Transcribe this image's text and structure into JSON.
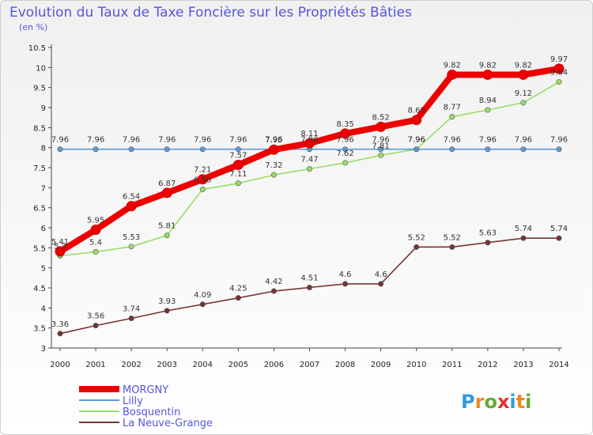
{
  "chart_data": {
    "type": "line",
    "title": "Evolution du Taux de Taxe Foncière sur les Propriétés Bâties",
    "subtitle": "(en %)",
    "xlabel": "",
    "ylabel": "",
    "x": [
      "2000",
      "2001",
      "2002",
      "2003",
      "2004",
      "2005",
      "2006",
      "2007",
      "2008",
      "2009",
      "2010",
      "2011",
      "2012",
      "2013",
      "2014"
    ],
    "ylim": [
      3,
      10.5
    ],
    "yticks": [
      "3",
      "3.5",
      "4",
      "4.5",
      "5",
      "5.5",
      "6",
      "6.5",
      "7",
      "7.5",
      "8",
      "8.5",
      "9",
      "9.5",
      "10",
      "10.5"
    ],
    "grid": false,
    "legend_position": "bottom-left",
    "series": [
      {
        "name": "MORGNY",
        "color": "#ee0000",
        "values": [
          5.41,
          5.95,
          6.54,
          6.87,
          7.21,
          7.57,
          7.95,
          8.11,
          8.35,
          8.52,
          8.69,
          9.82,
          9.82,
          9.82,
          9.97
        ],
        "labels": [
          "5.41",
          "5.95",
          "6.54",
          "6.87",
          "7.21",
          "7.57",
          "7.95",
          "8.11",
          "8.35",
          "8.52",
          "8.69",
          "9.82",
          "9.82",
          "9.82",
          "9.97"
        ]
      },
      {
        "name": "Lilly",
        "color": "#5b9bd5",
        "values": [
          7.96,
          7.96,
          7.96,
          7.96,
          7.96,
          7.96,
          7.96,
          7.96,
          7.96,
          7.96,
          7.96,
          7.96,
          7.96,
          7.96,
          7.96
        ],
        "labels": [
          "7.96",
          "7.96",
          "7.96",
          "7.96",
          "7.96",
          "7.96",
          "7.96",
          "7.96",
          "7.96",
          "7.96",
          "7.96",
          "7.96",
          "7.96",
          "7.96",
          "7.96"
        ]
      },
      {
        "name": "Bosquentin",
        "color": "#99dd66",
        "values": [
          5.3,
          5.4,
          5.53,
          5.81,
          6.96,
          7.11,
          7.32,
          7.47,
          7.62,
          7.81,
          7.96,
          8.77,
          8.94,
          9.12,
          9.64
        ],
        "labels": [
          "5.3",
          "5.4",
          "5.53",
          "5.81",
          "6.96",
          "7.11",
          "7.32",
          "7.47",
          "7.62",
          "7.81",
          "7.96",
          "8.77",
          "8.94",
          "9.12",
          "9.64"
        ]
      },
      {
        "name": "La Neuve-Grange",
        "color": "#773333",
        "values": [
          3.36,
          3.56,
          3.74,
          3.93,
          4.09,
          4.25,
          4.42,
          4.51,
          4.6,
          4.6,
          5.52,
          5.52,
          5.63,
          5.74,
          5.74
        ],
        "labels": [
          "3.36",
          "3.56",
          "3.74",
          "3.93",
          "4.09",
          "4.25",
          "4.42",
          "4.51",
          "4.6",
          "4.6",
          "5.52",
          "5.52",
          "5.63",
          "5.74",
          "5.74"
        ]
      }
    ]
  },
  "logo": {
    "letters": [
      "P",
      "r",
      "o",
      "x",
      "i",
      "t",
      "i"
    ],
    "colors": [
      "#3399dd",
      "#ee8822",
      "#66aa33",
      "#dd3333",
      "#3399dd",
      "#ee8822",
      "#66aa33"
    ]
  }
}
